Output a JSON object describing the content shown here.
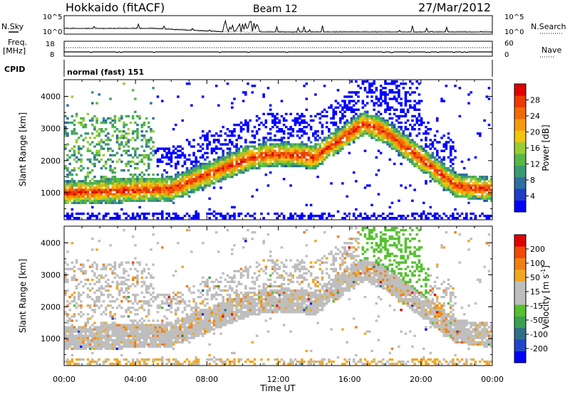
{
  "header": {
    "radar": "Hokkaido (fitACF)",
    "beam": "Beam 12",
    "date": "27/Mar/2012"
  },
  "top_panels": {
    "nsky_label": "N.Sky",
    "nsearch_label": "N.Search",
    "nsky_ticks": [
      "10^5",
      "10^0"
    ],
    "nsearch_ticks": [
      "10^5",
      "10^0"
    ],
    "freq_label_1": "Freq.",
    "freq_label_2": "[MHz]",
    "freq_ticks": [
      "18",
      "8"
    ],
    "nave_label": "Nave",
    "nave_ticks": [
      "60",
      "0"
    ],
    "cpid_label": "CPID",
    "cpid_value": "normal (fast) 151"
  },
  "colors": {
    "power": [
      "#0000ff",
      "#1e3ec8",
      "#2e6fa0",
      "#3c9a72",
      "#56b845",
      "#9acd32",
      "#f2c40c",
      "#f59a0a",
      "#f26a08",
      "#ec3a05",
      "#e00000"
    ],
    "velocity": [
      "#0000ff",
      "#2244cc",
      "#2e6f88",
      "#3aa050",
      "#56c030",
      "#bebebe",
      "#bebebe",
      "#f0a820",
      "#f08010",
      "#f04a06",
      "#e00000"
    ]
  },
  "chart_data": [
    {
      "type": "heatmap",
      "name": "power",
      "ylabel": "Slant Range [km]",
      "xlabel": "Time UT",
      "xlim": [
        "00:00",
        "24:00"
      ],
      "x_ticks": [
        "00:00",
        "04:00",
        "08:00",
        "12:00",
        "16:00",
        "20:00",
        "00:00"
      ],
      "ylim": [
        180,
        4500
      ],
      "y_ticks": [
        1000,
        2000,
        3000,
        4000
      ],
      "colorbar_label": "Power [dB]",
      "colorbar_ticks": [
        "4",
        "8",
        "12",
        "16",
        "20",
        "24",
        "28"
      ],
      "colorbar_range": [
        0,
        30
      ]
    },
    {
      "type": "heatmap",
      "name": "velocity",
      "ylabel": "Slant Range [km]",
      "xlabel": "Time UT",
      "xlim": [
        "00:00",
        "24:00"
      ],
      "x_ticks": [
        "00:00",
        "04:00",
        "08:00",
        "12:00",
        "16:00",
        "20:00",
        "00:00"
      ],
      "ylim": [
        180,
        4500
      ],
      "y_ticks": [
        1000,
        2000,
        3000,
        4000
      ],
      "colorbar_label": "Velocity [m s^-1]",
      "colorbar_ticks": [
        "200",
        "100",
        "50",
        "15",
        "-15",
        "-50",
        "-100",
        "-200"
      ],
      "colorbar_range": [
        -250,
        250
      ]
    }
  ],
  "axes": {
    "xlabel": "Time UT",
    "ylabel": "Slant Range [km]",
    "power_cbar_label": "Power [dB]",
    "velocity_cbar_label_main": "Velocity [m s",
    "velocity_cbar_label_sup": "-1",
    "velocity_cbar_label_end": "]"
  }
}
